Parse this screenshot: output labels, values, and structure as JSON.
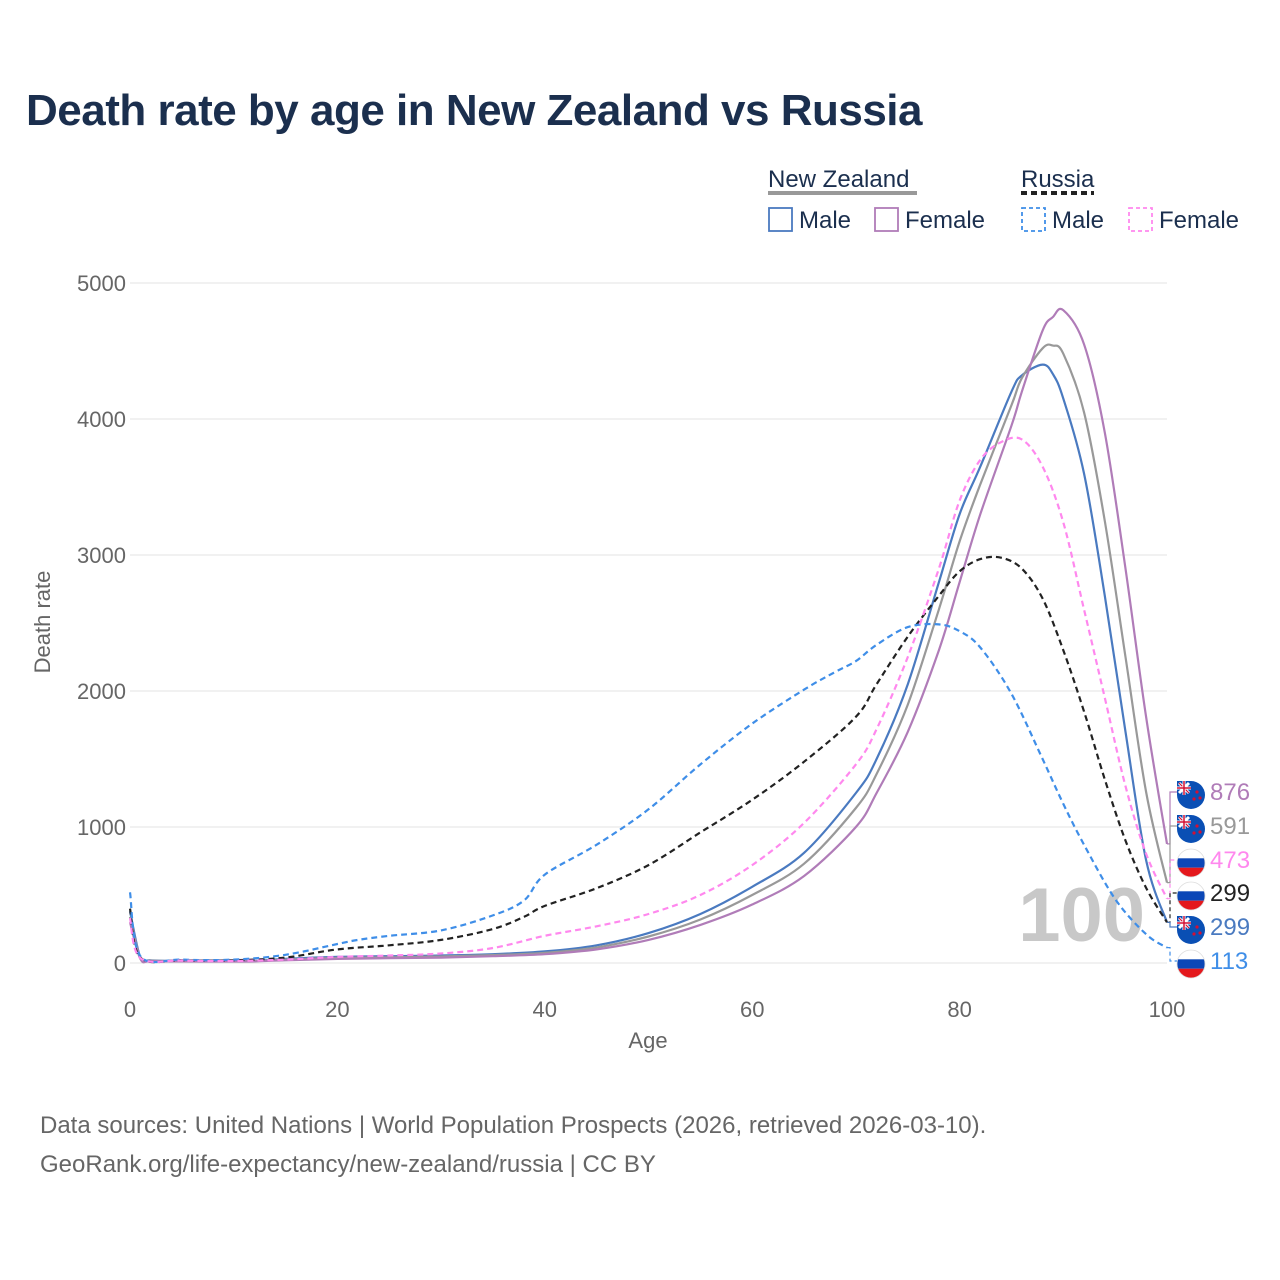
{
  "title": "Death rate by age in New Zealand vs Russia",
  "footer": {
    "line1": "Data sources: United Nations | World Population Prospects (2026, retrieved 2026-03-10).",
    "line2": "GeoRank.org/life-expectancy/new-zealand/russia | CC BY"
  },
  "legend": {
    "groups": [
      {
        "country": "New Zealand",
        "line_color": "#999999",
        "dashed": false,
        "items": [
          {
            "label": "Male",
            "color": "#4a7ac0"
          },
          {
            "label": "Female",
            "color": "#b07cb8"
          }
        ]
      },
      {
        "country": "Russia",
        "line_color": "#222222",
        "dashed": true,
        "items": [
          {
            "label": "Male",
            "color": "#3f8ee8"
          },
          {
            "label": "Female",
            "color": "#ff88ee"
          }
        ]
      }
    ]
  },
  "watermark": "100",
  "chart_data": {
    "type": "line",
    "title": "Death rate by age in New Zealand vs Russia",
    "xlabel": "Age",
    "ylabel": "Death rate",
    "xlim": [
      0,
      100
    ],
    "ylim": [
      0,
      5000
    ],
    "xticks": [
      0,
      20,
      40,
      60,
      80,
      100
    ],
    "yticks": [
      0,
      1000,
      2000,
      3000,
      4000,
      5000
    ],
    "grid": true,
    "series": [
      {
        "name": "New Zealand Male",
        "color": "#4a7ac0",
        "dashed": false,
        "x": [
          0,
          1,
          2,
          5,
          10,
          12,
          15,
          20,
          25,
          30,
          35,
          40,
          45,
          50,
          55,
          60,
          65,
          70,
          72,
          75,
          78,
          80,
          82,
          85,
          86,
          88,
          89,
          90,
          92,
          94,
          96,
          98,
          100
        ],
        "y": [
          380,
          40,
          20,
          15,
          15,
          15,
          30,
          45,
          50,
          55,
          65,
          85,
          130,
          220,
          360,
          560,
          810,
          1250,
          1500,
          2050,
          2800,
          3300,
          3650,
          4200,
          4320,
          4400,
          4330,
          4150,
          3600,
          2700,
          1700,
          750,
          299
        ]
      },
      {
        "name": "New Zealand Total",
        "color": "#999999",
        "dashed": false,
        "x": [
          0,
          1,
          2,
          5,
          10,
          12,
          15,
          20,
          25,
          30,
          35,
          40,
          45,
          50,
          55,
          60,
          65,
          70,
          72,
          75,
          78,
          80,
          82,
          85,
          86,
          88,
          89,
          90,
          92,
          94,
          96,
          98,
          100
        ],
        "y": [
          340,
          35,
          18,
          14,
          13,
          14,
          25,
          38,
          42,
          48,
          58,
          75,
          115,
          195,
          320,
          500,
          730,
          1140,
          1390,
          1900,
          2600,
          3100,
          3520,
          4100,
          4300,
          4520,
          4540,
          4480,
          4050,
          3250,
          2250,
          1250,
          591
        ]
      },
      {
        "name": "New Zealand Female",
        "color": "#b07cb8",
        "dashed": false,
        "x": [
          0,
          1,
          2,
          5,
          10,
          12,
          15,
          20,
          25,
          30,
          35,
          40,
          45,
          50,
          55,
          60,
          65,
          70,
          72,
          75,
          78,
          80,
          82,
          85,
          86,
          88,
          89,
          90,
          92,
          94,
          96,
          98,
          100
        ],
        "y": [
          300,
          30,
          15,
          12,
          11,
          12,
          20,
          30,
          35,
          40,
          50,
          65,
          100,
          170,
          280,
          430,
          640,
          1000,
          1250,
          1700,
          2300,
          2800,
          3300,
          3950,
          4200,
          4650,
          4750,
          4800,
          4550,
          3900,
          2900,
          1800,
          876
        ]
      },
      {
        "name": "Russia Total",
        "color": "#222222",
        "dashed": true,
        "x": [
          0,
          1,
          5,
          10,
          15,
          20,
          25,
          30,
          35,
          38,
          40,
          45,
          50,
          55,
          60,
          65,
          70,
          72,
          75,
          78,
          80,
          82,
          84,
          86,
          88,
          90,
          92,
          94,
          96,
          98,
          100
        ],
        "y": [
          400,
          40,
          20,
          20,
          40,
          100,
          130,
          170,
          250,
          340,
          420,
          550,
          720,
          960,
          1200,
          1480,
          1810,
          2050,
          2400,
          2700,
          2880,
          2970,
          2980,
          2900,
          2680,
          2300,
          1850,
          1350,
          900,
          550,
          299
        ]
      },
      {
        "name": "Russia Male",
        "color": "#3f8ee8",
        "dashed": true,
        "x": [
          0,
          1,
          5,
          10,
          15,
          20,
          22,
          25,
          30,
          35,
          38,
          40,
          45,
          50,
          55,
          60,
          65,
          68,
          70,
          72,
          75,
          78,
          80,
          82,
          85,
          88,
          90,
          92,
          95,
          98,
          100
        ],
        "y": [
          520,
          50,
          25,
          25,
          60,
          140,
          170,
          200,
          240,
          350,
          460,
          650,
          870,
          1130,
          1460,
          1760,
          2010,
          2140,
          2220,
          2340,
          2470,
          2490,
          2440,
          2320,
          1980,
          1500,
          1170,
          870,
          470,
          210,
          113
        ]
      },
      {
        "name": "Russia Female",
        "color": "#ff88ee",
        "dashed": true,
        "x": [
          0,
          1,
          5,
          10,
          15,
          20,
          25,
          30,
          35,
          40,
          45,
          50,
          55,
          60,
          65,
          70,
          72,
          75,
          78,
          80,
          82,
          84,
          86,
          88,
          90,
          92,
          94,
          96,
          98,
          100
        ],
        "y": [
          330,
          35,
          18,
          15,
          25,
          45,
          55,
          70,
          110,
          200,
          270,
          360,
          500,
          720,
          1030,
          1460,
          1720,
          2250,
          2900,
          3400,
          3700,
          3830,
          3850,
          3650,
          3240,
          2600,
          1950,
          1300,
          800,
          473
        ]
      }
    ],
    "end_labels": [
      {
        "value": "876",
        "series": "New Zealand Female",
        "color": "#b07cb8",
        "flag": "new-zealand-flag-icon"
      },
      {
        "value": "591",
        "series": "New Zealand Total",
        "color": "#999999",
        "flag": "new-zealand-flag-icon"
      },
      {
        "value": "473",
        "series": "Russia Female",
        "color": "#ff88ee",
        "flag": "russia-flag-icon"
      },
      {
        "value": "299",
        "series": "Russia Total",
        "color": "#222222",
        "flag": "russia-flag-icon"
      },
      {
        "value": "299",
        "series": "New Zealand Male",
        "color": "#4a7ac0",
        "flag": "new-zealand-flag-icon"
      },
      {
        "value": "113",
        "series": "Russia Male",
        "color": "#3f8ee8",
        "flag": "russia-flag-icon"
      }
    ]
  }
}
